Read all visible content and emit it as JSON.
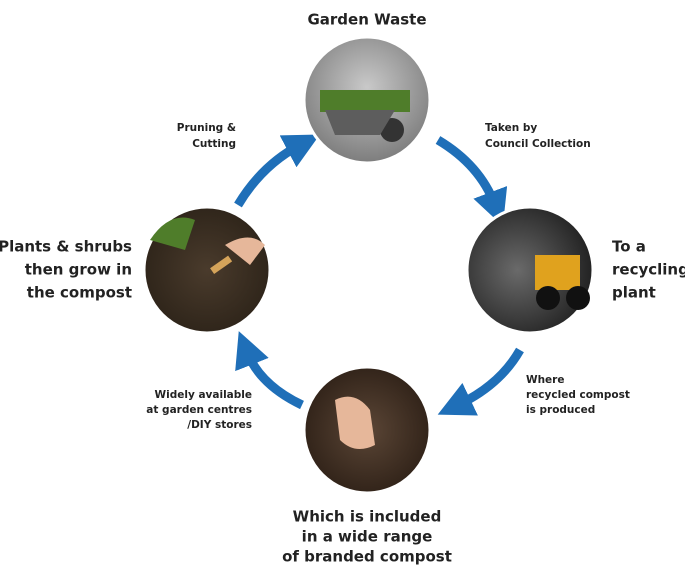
{
  "nodes": [
    {
      "label": [
        "Garden Waste"
      ]
    },
    {
      "label": [
        "To a",
        "recycling",
        "plant"
      ]
    },
    {
      "label": [
        "Which is included",
        "in a wide range",
        "of branded compost"
      ]
    },
    {
      "label": [
        "Plants & shrubs",
        "then grow in",
        "the compost"
      ]
    }
  ],
  "transitions": [
    {
      "label": [
        "Taken by",
        "Council Collection"
      ]
    },
    {
      "label": [
        "Where",
        "recycled compost",
        "is produced"
      ]
    },
    {
      "label": [
        "Widely available",
        "at garden centres",
        "/DIY stores"
      ]
    },
    {
      "label": [
        "Pruning &",
        "Cutting"
      ]
    }
  ]
}
